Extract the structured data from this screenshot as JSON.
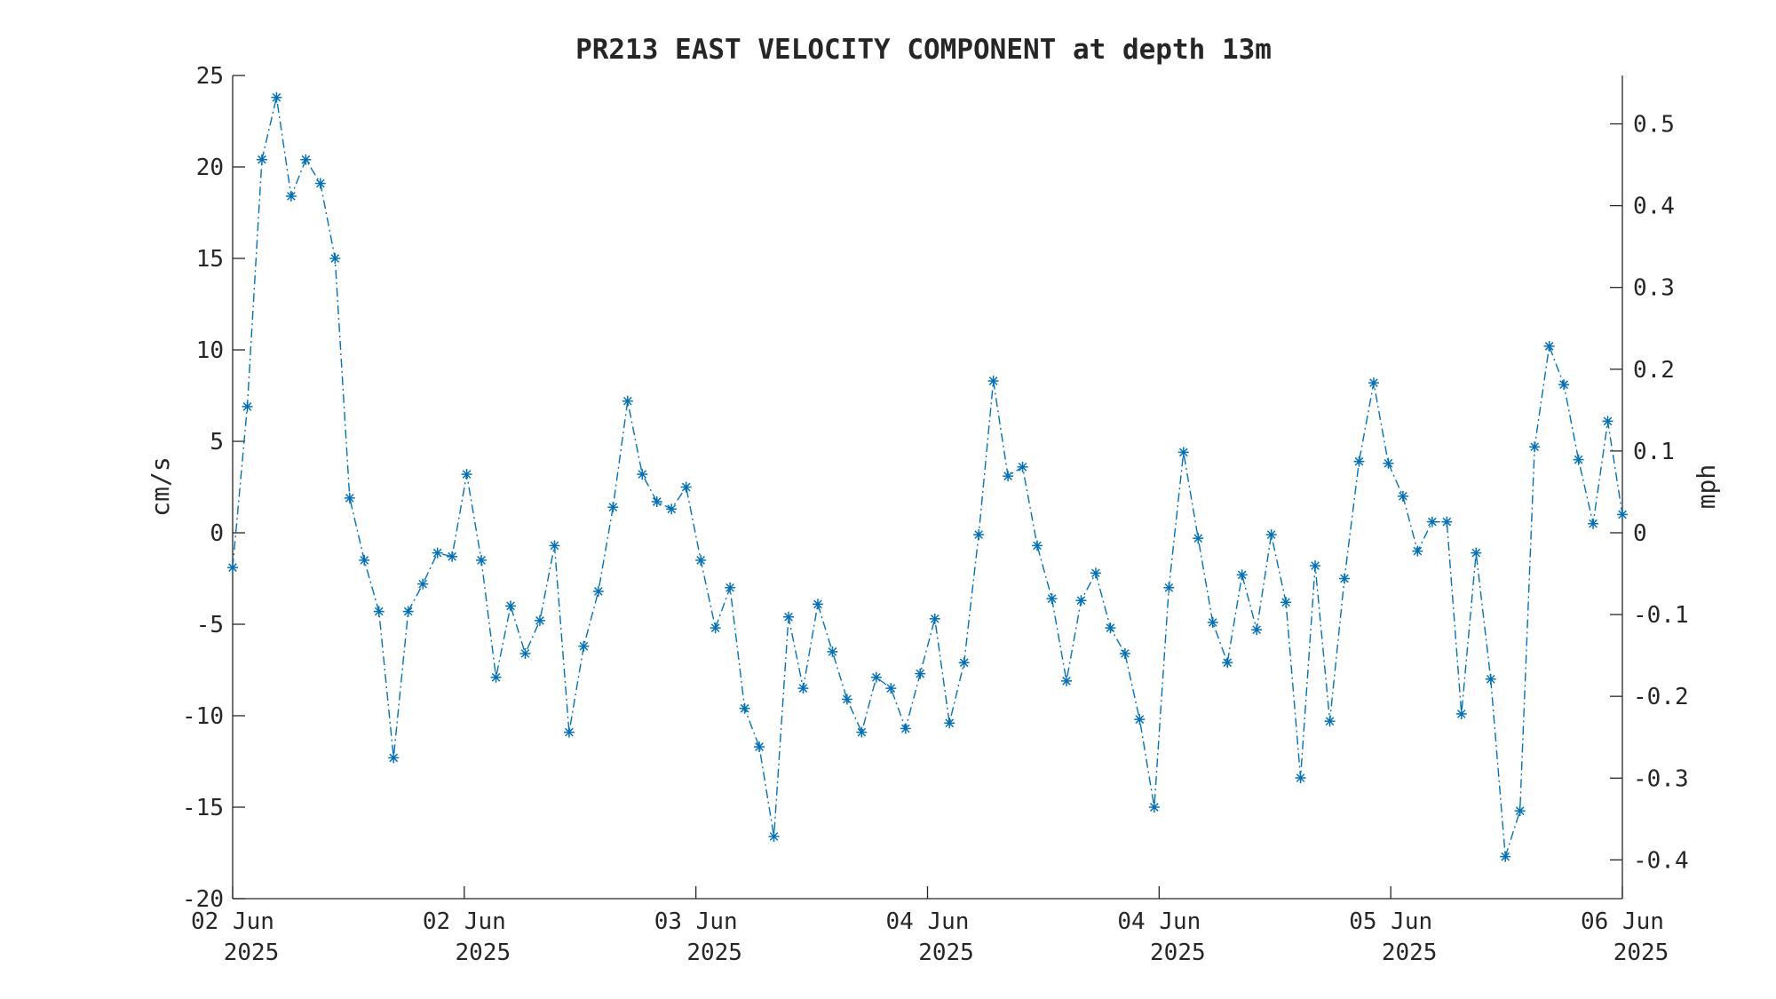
{
  "chart_data": {
    "type": "line",
    "title": "PR213 EAST VELOCITY COMPONENT at depth 13m",
    "ylabel": "cm/s",
    "ylabel_right": "mph",
    "xlabel": "",
    "ylim": [
      -20,
      25
    ],
    "yticks": [
      -20,
      -15,
      -10,
      -5,
      0,
      5,
      10,
      15,
      20,
      25
    ],
    "y2lim": [
      -0.4474,
      0.5592
    ],
    "y2ticks": [
      -0.4,
      -0.3,
      -0.2,
      -0.1,
      0,
      0.1,
      0.2,
      0.3,
      0.4,
      0.5
    ],
    "y2tick_labels": [
      "-0.4",
      "-0.3",
      "-0.2",
      "-0.1",
      "0",
      "0.1",
      "0.2",
      "0.3",
      "0.4",
      "0.5"
    ],
    "xlim_hours": [
      0,
      96
    ],
    "x_unit": "hours from 02 Jun 2025 00:00",
    "xtick_hours": [
      0,
      16,
      32,
      48,
      64,
      80,
      96
    ],
    "xtick_labels": [
      [
        "02 Jun",
        "2025"
      ],
      [
        "02 Jun",
        "2025"
      ],
      [
        "03 Jun",
        "2025"
      ],
      [
        "04 Jun",
        "2025"
      ],
      [
        "04 Jun",
        "2025"
      ],
      [
        "05 Jun",
        "2025"
      ],
      [
        "06 Jun",
        "2025"
      ]
    ],
    "line_style": "dash-dot",
    "marker": "asterisk",
    "grid": false,
    "legend": "none",
    "series": [
      {
        "color": "#0072bd",
        "values": [
          -1.9,
          6.9,
          20.4,
          23.8,
          18.4,
          20.4,
          19.1,
          15.0,
          1.9,
          -1.5,
          -4.3,
          -12.3,
          -4.3,
          -2.8,
          -1.1,
          -1.3,
          3.2,
          -1.5,
          -7.9,
          -4.0,
          -6.6,
          -4.8,
          -0.7,
          -10.9,
          -6.2,
          -3.2,
          1.4,
          7.2,
          3.2,
          1.7,
          1.3,
          2.5,
          -1.5,
          -5.2,
          -3.0,
          -9.6,
          -11.7,
          -16.6,
          -4.6,
          -8.5,
          -3.9,
          -6.5,
          -9.1,
          -10.9,
          -7.9,
          -8.5,
          -10.7,
          -7.7,
          -4.7,
          -10.4,
          -7.1,
          -0.1,
          8.3,
          3.1,
          3.6,
          -0.7,
          -3.6,
          -8.1,
          -3.7,
          -2.2,
          -5.2,
          -6.6,
          -10.2,
          -15.0,
          -3.0,
          4.4,
          -0.3,
          -4.9,
          -7.1,
          -2.3,
          -5.3,
          -0.1,
          -3.8,
          -13.4,
          -1.8,
          -10.3,
          -2.5,
          3.9,
          8.2,
          3.8,
          2.0,
          -1.0,
          0.6,
          0.6,
          -9.9,
          -1.1,
          -8.0,
          -17.7,
          -15.2,
          4.7,
          10.2,
          8.1,
          4.0,
          0.5,
          6.1,
          1.0
        ]
      }
    ]
  }
}
